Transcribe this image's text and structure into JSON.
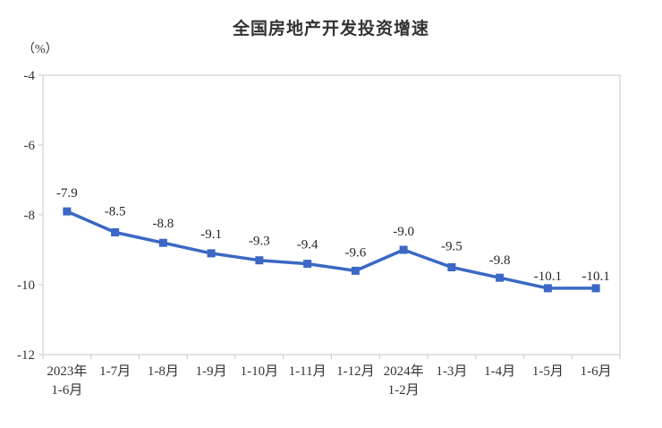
{
  "chart_data": {
    "type": "line",
    "title": "全国房地产开发投资增速",
    "unit_label": "（%）",
    "categories": [
      "2023年\n1-6月",
      "1-7月",
      "1-8月",
      "1-9月",
      "1-10月",
      "1-11月",
      "1-12月",
      "2024年\n1-2月",
      "1-3月",
      "1-4月",
      "1-5月",
      "1-6月"
    ],
    "values": [
      -7.9,
      -8.5,
      -8.8,
      -9.1,
      -9.3,
      -9.4,
      -9.6,
      -9.0,
      -9.5,
      -9.8,
      -10.1,
      -10.1
    ],
    "data_labels": [
      "-7.9",
      "-8.5",
      "-8.8",
      "-9.1",
      "-9.3",
      "-9.4",
      "-9.6",
      "-9.0",
      "-9.5",
      "-9.8",
      "-10.1",
      "-10.1"
    ],
    "ylim": [
      -12,
      -4
    ],
    "yticks": [
      -4,
      -6,
      -8,
      -10,
      -12
    ],
    "grid": false,
    "legend": "none",
    "series_color": "#3A68C4",
    "axis_color": "#C9C9C9",
    "label_color": "#262626",
    "text_color": "#333333"
  }
}
